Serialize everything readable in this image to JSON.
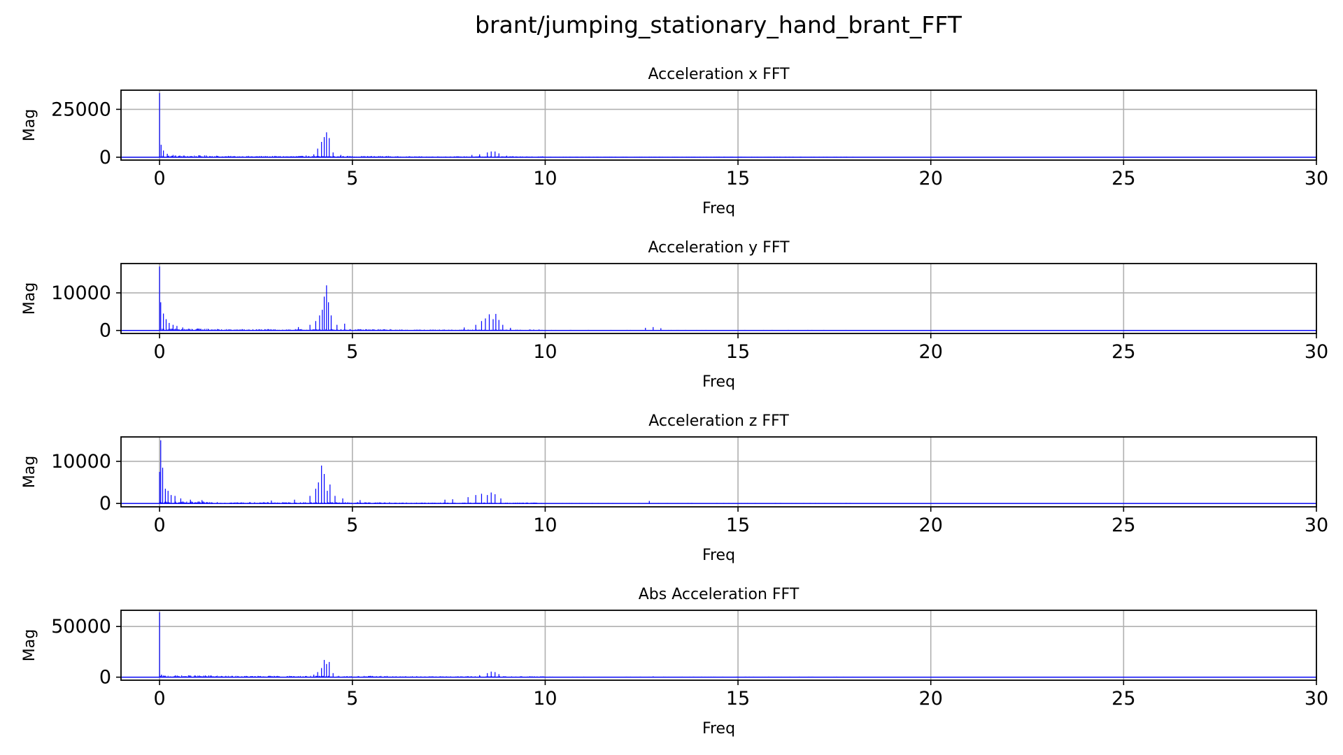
{
  "figure": {
    "suptitle": "brant/jumping_stationary_hand_brant_FFT"
  },
  "colors": {
    "series": "#0000ff",
    "grid": "#b0b0b0"
  },
  "chart_data": [
    {
      "type": "bar",
      "title": "Acceleration x FFT",
      "xlabel": "Freq",
      "ylabel": "Mag",
      "xlim": [
        -1,
        30
      ],
      "ylim": [
        -1500,
        35000
      ],
      "xticks": [
        0,
        5,
        10,
        15,
        20,
        25,
        30
      ],
      "yticks": [
        0,
        25000
      ],
      "grid": true,
      "peaks": [
        {
          "x": 0.0,
          "y": 33500
        },
        {
          "x": 0.04,
          "y": 6500
        },
        {
          "x": 0.1,
          "y": 3500
        },
        {
          "x": 0.2,
          "y": 1800
        },
        {
          "x": 0.35,
          "y": 1200
        },
        {
          "x": 0.5,
          "y": 600
        },
        {
          "x": 3.8,
          "y": 900
        },
        {
          "x": 4.0,
          "y": 1500
        },
        {
          "x": 4.1,
          "y": 4500
        },
        {
          "x": 4.2,
          "y": 8000
        },
        {
          "x": 4.27,
          "y": 10500
        },
        {
          "x": 4.33,
          "y": 13000
        },
        {
          "x": 4.4,
          "y": 10000
        },
        {
          "x": 4.5,
          "y": 2500
        },
        {
          "x": 4.7,
          "y": 1200
        },
        {
          "x": 8.1,
          "y": 1200
        },
        {
          "x": 8.3,
          "y": 1500
        },
        {
          "x": 8.5,
          "y": 2500
        },
        {
          "x": 8.6,
          "y": 3000
        },
        {
          "x": 8.7,
          "y": 3000
        },
        {
          "x": 8.8,
          "y": 2000
        },
        {
          "x": 9.0,
          "y": 800
        }
      ]
    },
    {
      "type": "bar",
      "title": "Acceleration y FFT",
      "xlabel": "Freq",
      "ylabel": "Mag",
      "xlim": [
        -1,
        30
      ],
      "ylim": [
        -800,
        17800
      ],
      "xticks": [
        0,
        5,
        10,
        15,
        20,
        25,
        30
      ],
      "yticks": [
        0,
        10000
      ],
      "grid": true,
      "peaks": [
        {
          "x": 0.0,
          "y": 17000
        },
        {
          "x": 0.03,
          "y": 7500
        },
        {
          "x": 0.1,
          "y": 4500
        },
        {
          "x": 0.17,
          "y": 3000
        },
        {
          "x": 0.25,
          "y": 2000
        },
        {
          "x": 0.35,
          "y": 1500
        },
        {
          "x": 0.45,
          "y": 1200
        },
        {
          "x": 0.6,
          "y": 800
        },
        {
          "x": 1.0,
          "y": 500
        },
        {
          "x": 3.6,
          "y": 900
        },
        {
          "x": 3.9,
          "y": 1500
        },
        {
          "x": 4.05,
          "y": 2500
        },
        {
          "x": 4.15,
          "y": 4000
        },
        {
          "x": 4.22,
          "y": 5500
        },
        {
          "x": 4.27,
          "y": 9000
        },
        {
          "x": 4.33,
          "y": 12000
        },
        {
          "x": 4.38,
          "y": 7500
        },
        {
          "x": 4.45,
          "y": 4000
        },
        {
          "x": 4.6,
          "y": 1500
        },
        {
          "x": 4.8,
          "y": 1800
        },
        {
          "x": 7.9,
          "y": 800
        },
        {
          "x": 8.2,
          "y": 1500
        },
        {
          "x": 8.35,
          "y": 2500
        },
        {
          "x": 8.45,
          "y": 3200
        },
        {
          "x": 8.55,
          "y": 4300
        },
        {
          "x": 8.65,
          "y": 3000
        },
        {
          "x": 8.72,
          "y": 4400
        },
        {
          "x": 8.8,
          "y": 2800
        },
        {
          "x": 8.9,
          "y": 1500
        },
        {
          "x": 9.1,
          "y": 700
        },
        {
          "x": 12.6,
          "y": 700
        },
        {
          "x": 12.8,
          "y": 900
        },
        {
          "x": 13.0,
          "y": 600
        }
      ]
    },
    {
      "type": "bar",
      "title": "Acceleration z FFT",
      "xlabel": "Freq",
      "ylabel": "Mag",
      "xlim": [
        -1,
        30
      ],
      "ylim": [
        -800,
        15800
      ],
      "xticks": [
        0,
        5,
        10,
        15,
        20,
        25,
        30
      ],
      "yticks": [
        0,
        10000
      ],
      "grid": true,
      "peaks": [
        {
          "x": 0.0,
          "y": 7500
        },
        {
          "x": 0.03,
          "y": 15000
        },
        {
          "x": 0.08,
          "y": 8500
        },
        {
          "x": 0.15,
          "y": 3500
        },
        {
          "x": 0.22,
          "y": 3000
        },
        {
          "x": 0.3,
          "y": 2000
        },
        {
          "x": 0.4,
          "y": 1800
        },
        {
          "x": 0.55,
          "y": 1200
        },
        {
          "x": 0.8,
          "y": 900
        },
        {
          "x": 1.1,
          "y": 800
        },
        {
          "x": 2.9,
          "y": 700
        },
        {
          "x": 3.5,
          "y": 900
        },
        {
          "x": 3.9,
          "y": 1800
        },
        {
          "x": 4.05,
          "y": 3500
        },
        {
          "x": 4.12,
          "y": 5000
        },
        {
          "x": 4.2,
          "y": 9000
        },
        {
          "x": 4.27,
          "y": 7000
        },
        {
          "x": 4.35,
          "y": 3000
        },
        {
          "x": 4.42,
          "y": 4500
        },
        {
          "x": 4.55,
          "y": 1800
        },
        {
          "x": 4.75,
          "y": 1200
        },
        {
          "x": 5.2,
          "y": 800
        },
        {
          "x": 7.4,
          "y": 900
        },
        {
          "x": 7.6,
          "y": 1000
        },
        {
          "x": 8.0,
          "y": 1500
        },
        {
          "x": 8.2,
          "y": 2000
        },
        {
          "x": 8.35,
          "y": 2300
        },
        {
          "x": 8.5,
          "y": 2000
        },
        {
          "x": 8.6,
          "y": 2600
        },
        {
          "x": 8.7,
          "y": 2200
        },
        {
          "x": 8.85,
          "y": 1200
        },
        {
          "x": 12.7,
          "y": 600
        }
      ]
    },
    {
      "type": "bar",
      "title": "Abs Acceleration FFT",
      "xlabel": "Freq",
      "ylabel": "Mag",
      "xlim": [
        -1,
        30
      ],
      "ylim": [
        -3000,
        66000
      ],
      "xticks": [
        0,
        5,
        10,
        15,
        20,
        25,
        30
      ],
      "yticks": [
        0,
        50000
      ],
      "grid": true,
      "peaks": [
        {
          "x": 0.0,
          "y": 64000
        },
        {
          "x": 0.05,
          "y": 2500
        },
        {
          "x": 3.8,
          "y": 1200
        },
        {
          "x": 4.0,
          "y": 2500
        },
        {
          "x": 4.1,
          "y": 5000
        },
        {
          "x": 4.2,
          "y": 9000
        },
        {
          "x": 4.27,
          "y": 17000
        },
        {
          "x": 4.33,
          "y": 13000
        },
        {
          "x": 4.4,
          "y": 15000
        },
        {
          "x": 4.5,
          "y": 4000
        },
        {
          "x": 8.3,
          "y": 2000
        },
        {
          "x": 8.5,
          "y": 4000
        },
        {
          "x": 8.6,
          "y": 5500
        },
        {
          "x": 8.7,
          "y": 5000
        },
        {
          "x": 8.8,
          "y": 3000
        },
        {
          "x": 12.8,
          "y": 800
        }
      ]
    }
  ]
}
